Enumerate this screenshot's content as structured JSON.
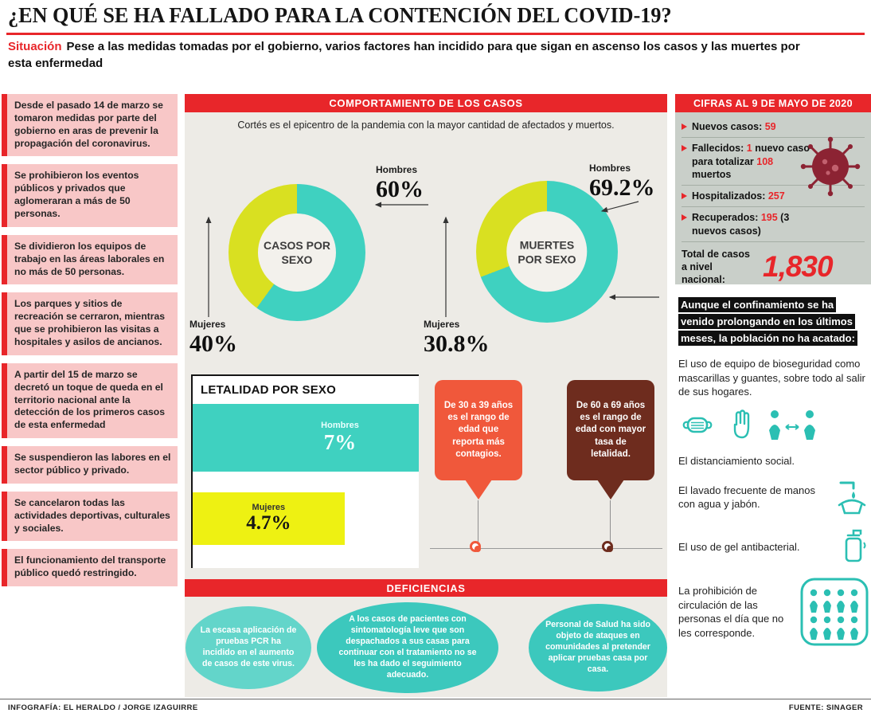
{
  "page": {
    "title": "¿EN QUÉ SE HA FALLADO PARA LA CONTENCIÓN DEL COVID-19?",
    "subtitle_label": "Situación",
    "subtitle_text": "Pese a las medidas tomadas por el gobierno, varios factores han incidido para que sigan en ascenso los casos y las muertes por esta enfermedad",
    "footer_left": "INFOGRAFÍA: EL HERALDO / JORGE IZAGUIRRE",
    "footer_right": "FUENTE: SINAGER"
  },
  "colors": {
    "accent_red": "#e8262a",
    "pink_panel": "#f8c7c7",
    "teal": "#3fd1c0",
    "yellow_green": "#d9e021",
    "yellow_bar": "#eef112",
    "orange_callout": "#f0583b",
    "brown_callout": "#6e2c1e",
    "gray_box": "#c9cfc9",
    "blob_teal": "#3cc8bd",
    "icon_teal": "#2bbfb3",
    "virus_maroon": "#8c2333"
  },
  "measures": [
    "Desde el pasado 14 de marzo se tomaron medidas por parte del gobierno en aras de prevenir la propagación del coronavirus.",
    "Se prohibieron los eventos públicos y privados que aglomeraran a más de 50 personas.",
    "Se dividieron los equipos de trabajo en las áreas laborales en no más de 50 personas.",
    "Los parques y sitios de recreación se cerraron, mientras que se prohibieron las visitas a hospitales y asilos de ancianos.",
    "A partir del 15 de marzo se decretó un toque de queda en el territorio nacional ante la detección de los primeros casos de esta enfermedad",
    "Se suspendieron las labores en el sector público y privado.",
    "Se cancelaron todas las actividades deportivas, culturales y sociales.",
    "El funcionamiento del transporte público quedó restringido."
  ],
  "center": {
    "header": "COMPORTAMIENTO DE LOS CASOS",
    "intro": "Cortés es el epicentro de la pandemia con la mayor cantidad de afectados y muertos.",
    "age_callouts": [
      {
        "text": "De 30 a 39 años es el rango de edad que reporta más contagios.",
        "color": "#f0583b"
      },
      {
        "text": "De 60 a 69 años es el rango de edad con mayor tasa de letalidad.",
        "color": "#6e2c1e"
      }
    ],
    "deficiencias_header": "DEFICIENCIAS",
    "deficiencias": [
      "La escasa aplicación de pruebas PCR ha incidido en el aumento de casos de este virus.",
      "A los casos de pacientes con sintomatología leve que son despachados a sus casas para continuar con el tratamiento no se les ha dado el seguimiento adecuado.",
      "Personal de Salud ha sido objeto de ataques en comunidades al pretender aplicar pruebas casa por casa."
    ]
  },
  "chart_data": [
    {
      "type": "pie",
      "title": "CASOS POR SEXO",
      "slices": [
        {
          "label": "Hombres",
          "value": 60,
          "value_label": "60%",
          "color": "#3fd1c0"
        },
        {
          "label": "Mujeres",
          "value": 40,
          "value_label": "40%",
          "color": "#d9e021"
        }
      ]
    },
    {
      "type": "pie",
      "title": "MUERTES POR SEXO",
      "slices": [
        {
          "label": "Hombres",
          "value": 69.2,
          "value_label": "69.2%",
          "color": "#3fd1c0"
        },
        {
          "label": "Mujeres",
          "value": 30.8,
          "value_label": "30.8%",
          "color": "#d9e021"
        }
      ]
    },
    {
      "type": "bar",
      "title": "LETALIDAD POR SEXO",
      "xlim": [
        0,
        7
      ],
      "bars": [
        {
          "label": "Hombres",
          "value": 7,
          "value_label": "7%",
          "color": "#3fd1c0"
        },
        {
          "label": "Mujeres",
          "value": 4.7,
          "value_label": "4.7%",
          "color": "#eef112"
        }
      ]
    }
  ],
  "cifras": {
    "header": "CIFRAS AL 9 DE MAYO DE 2020",
    "virus_icon": "coronavirus-icon",
    "stats": [
      {
        "segments": [
          {
            "t": "Nuevos casos: ",
            "c": "k"
          },
          {
            "t": "59",
            "c": "r"
          }
        ]
      },
      {
        "segments": [
          {
            "t": "Fallecidos: ",
            "c": "k"
          },
          {
            "t": "1",
            "c": "r"
          },
          {
            "t": " nuevo caso para totalizar ",
            "c": "k"
          },
          {
            "t": "108",
            "c": "r"
          },
          {
            "t": " muertos",
            "c": "k"
          }
        ]
      },
      {
        "segments": [
          {
            "t": "Hospitalizados: ",
            "c": "k"
          },
          {
            "t": "257",
            "c": "r"
          }
        ]
      },
      {
        "segments": [
          {
            "t": "Recuperados: ",
            "c": "k"
          },
          {
            "t": "195",
            "c": "r"
          },
          {
            "t": " (3 nuevos casos)",
            "c": "k"
          }
        ]
      }
    ],
    "total_label": "Total de casos a nivel nacional:",
    "total_value": "1,830"
  },
  "conduct": {
    "intro": "Aunque el confinamiento se ha venido prolongando en los últimos meses, la población no ha acatado:",
    "items": [
      {
        "text": "El uso de equipo de bioseguridad como mascarillas y guantes, sobre todo al salir de sus hogares.",
        "icons": [
          "mask-icon",
          "gloves-icon",
          "social-distance-icon"
        ]
      },
      {
        "text": "El distanciamiento social."
      },
      {
        "text": "El lavado frecuente de manos con agua y jabón.",
        "icons": [
          "handwash-icon"
        ]
      },
      {
        "text": "El uso de gel antibacterial.",
        "icons": [
          "gel-icon"
        ]
      },
      {
        "text": "La prohibición de circulación de las personas el día que no les corresponde.",
        "icons": [
          "people-group-icon"
        ]
      }
    ]
  }
}
